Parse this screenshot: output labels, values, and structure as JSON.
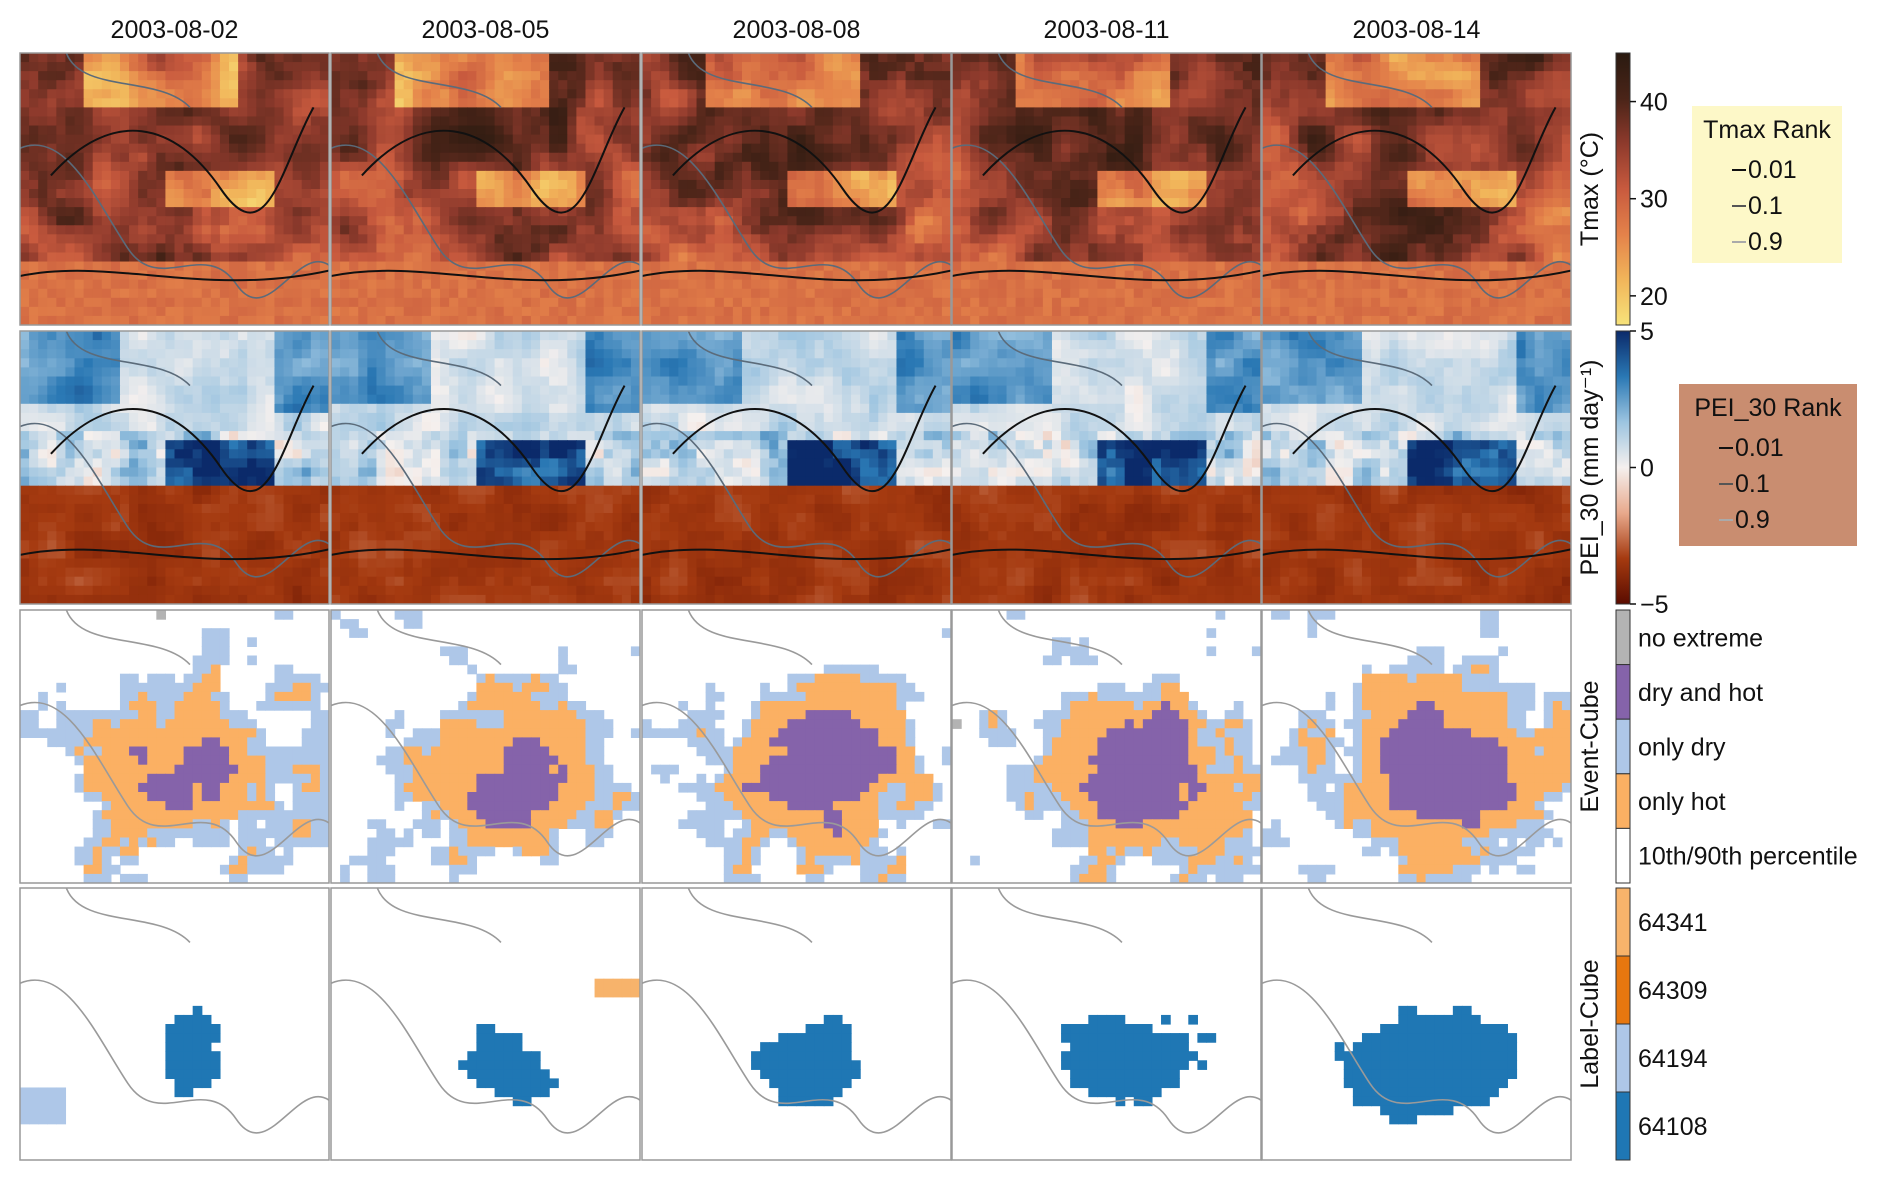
{
  "chart_data": {
    "type": "heatmap",
    "columns": [
      "2003-08-02",
      "2003-08-05",
      "2003-08-08",
      "2003-08-11",
      "2003-08-14"
    ],
    "rows": [
      {
        "ylabel": "Tmax (°C)",
        "colorbar": {
          "kind": "continuous",
          "ticks": [
            {
              "value": 20,
              "label": "20"
            },
            {
              "value": 30,
              "label": "30"
            },
            {
              "value": 40,
              "label": "40"
            }
          ],
          "range": [
            17,
            45
          ],
          "colors": [
            "#f7e27a",
            "#f1b55a",
            "#e4824a",
            "#c85a3e",
            "#8e3a2c",
            "#4a2418",
            "#2a1a10"
          ]
        },
        "legend": {
          "title": "Tmax Rank",
          "entries": [
            "0.01",
            "0.1",
            "0.9"
          ],
          "line_colors": [
            "#111111",
            "#555555",
            "#aaaaaa"
          ],
          "background": "#fdf8c8"
        }
      },
      {
        "ylabel": "PEI_30 (mm day⁻¹)",
        "colorbar": {
          "kind": "continuous",
          "ticks": [
            {
              "value": -5,
              "label": "−5"
            },
            {
              "value": 0,
              "label": "0"
            },
            {
              "value": 5,
              "label": "5"
            }
          ],
          "range": [
            -5,
            5
          ],
          "colors": [
            "#5a0c00",
            "#a53a10",
            "#e8a98c",
            "#f5f0ee",
            "#9cc4e0",
            "#2a78b4",
            "#0b2a6a"
          ]
        },
        "legend": {
          "title": "PEI_30 Rank",
          "entries": [
            "0.01",
            "0.1",
            "0.9"
          ],
          "line_colors": [
            "#111111",
            "#555555",
            "#aaaaaa"
          ],
          "background": "#c98d70"
        }
      },
      {
        "ylabel": "Event-Cube",
        "colorbar": {
          "kind": "categorical",
          "categories": [
            {
              "label": "no extreme",
              "color": "#b3b3b3"
            },
            {
              "label": "dry and hot",
              "color": "#8563aa"
            },
            {
              "label": "only dry",
              "color": "#aec7e8"
            },
            {
              "label": "only hot",
              "color": "#fbb063"
            },
            {
              "label": "10th/90th percentile",
              "color": "#ffffff"
            }
          ]
        }
      },
      {
        "ylabel": "Label-Cube",
        "colorbar": {
          "kind": "categorical",
          "categories": [
            {
              "label": "64341",
              "color": "#f7b36b"
            },
            {
              "label": "64309",
              "color": "#e7770f"
            },
            {
              "label": "64194",
              "color": "#aec7e8"
            },
            {
              "label": "64108",
              "color": "#1f77b4"
            }
          ]
        }
      }
    ]
  }
}
